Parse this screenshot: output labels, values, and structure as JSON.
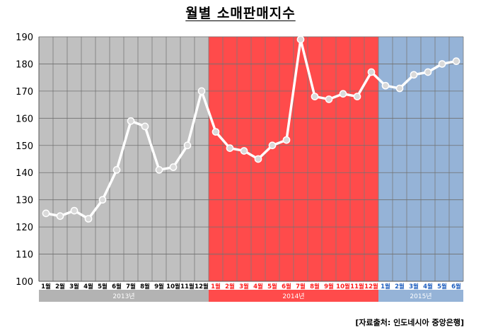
{
  "chart_data": {
    "type": "line",
    "title": "월별 소매판매지수",
    "source": "[자료출처: 인도네시아 중앙은행]",
    "ylim": [
      100,
      190
    ],
    "yticks": [
      100,
      110,
      120,
      130,
      140,
      150,
      160,
      170,
      180,
      190
    ],
    "grid": true,
    "categories": [
      "1월",
      "2월",
      "3월",
      "4월",
      "5월",
      "6월",
      "7월",
      "8월",
      "9월",
      "10월",
      "11월",
      "12월",
      "1월",
      "2월",
      "3월",
      "4월",
      "5월",
      "6월",
      "7월",
      "8월",
      "9월",
      "10월",
      "11월",
      "12월",
      "1월",
      "2월",
      "3월",
      "4월",
      "5월",
      "6월"
    ],
    "series": [
      {
        "values": [
          125,
          124,
          126,
          123,
          130,
          141,
          159,
          157,
          141,
          142,
          150,
          170,
          155,
          149,
          148,
          145,
          150,
          152,
          189,
          168,
          167,
          169,
          168,
          177,
          172,
          171,
          176,
          177,
          180,
          181
        ],
        "color": "#ffffff"
      }
    ],
    "years": [
      {
        "label": "2013년",
        "months": 12,
        "bg": "#c0c0c0",
        "band": "#b3b3b3",
        "band_text": "#ffffff",
        "tick_color": "#000000"
      },
      {
        "label": "2014년",
        "months": 12,
        "bg": "#ff4b4b",
        "band": "#ff4b4b",
        "band_text": "#ffffff",
        "tick_color": "#ff1a1a"
      },
      {
        "label": "2015년",
        "months": 6,
        "bg": "#95b3d7",
        "band": "#95b3d7",
        "band_text": "#ffffff",
        "tick_color": "#1f5fbf"
      }
    ]
  }
}
